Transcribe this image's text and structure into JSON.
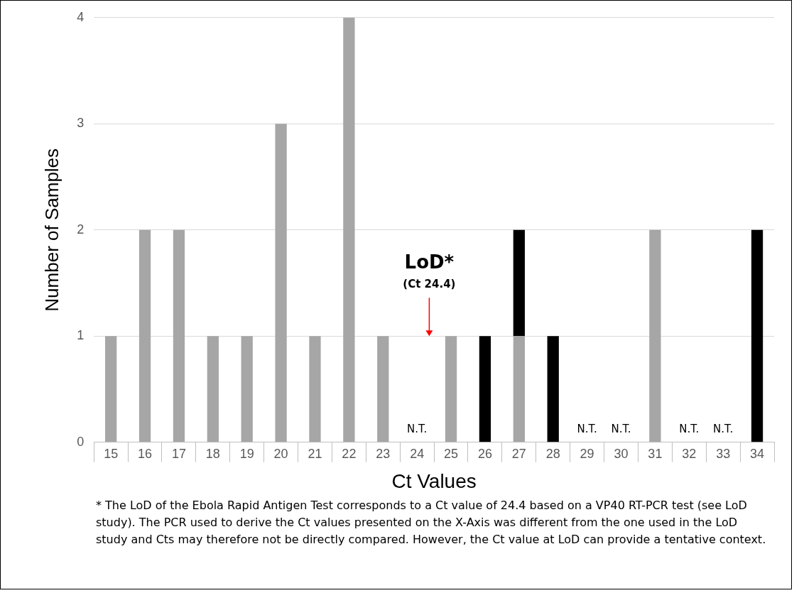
{
  "chart_data": {
    "type": "bar",
    "xlabel": "Ct Values",
    "ylabel": "Number of Samples",
    "categories": [
      "15",
      "16",
      "17",
      "18",
      "19",
      "20",
      "21",
      "22",
      "23",
      "24",
      "25",
      "26",
      "27",
      "28",
      "29",
      "30",
      "31",
      "32",
      "33",
      "34"
    ],
    "stacked": true,
    "series": [
      {
        "color": "#a6a6a6",
        "values": [
          1,
          2,
          2,
          1,
          1,
          3,
          1,
          4,
          1,
          0,
          1,
          0,
          1,
          0,
          0,
          0,
          2,
          0,
          0,
          0
        ]
      },
      {
        "color": "#000000",
        "values": [
          0,
          0,
          0,
          0,
          0,
          0,
          0,
          0,
          0,
          0,
          0,
          1,
          1,
          1,
          0,
          0,
          0,
          0,
          0,
          2
        ]
      }
    ],
    "ylim": [
      0,
      4
    ],
    "yticks": [
      0,
      1,
      2,
      3,
      4
    ],
    "grid": "y",
    "legend": false,
    "annotations": [
      {
        "text": "N.T.",
        "x": "24",
        "y": 0
      },
      {
        "text": "N.T.",
        "x": "29",
        "y": 0
      },
      {
        "text": "N.T.",
        "x": "30",
        "y": 0
      },
      {
        "text": "N.T.",
        "x": "32",
        "y": 0
      },
      {
        "text": "N.T.",
        "x": "33",
        "y": 0
      },
      "LoD*",
      "(Ct 24.4)",
      "* The LoD of the Ebola Rapid Antigen Test corresponds to a Ct value of 24.4 based on a VP40 RT-PCR test (see LoD study). The PCR used to derive the Ct values presented on the X-Axis was different from the one used in the LoD study and Cts may therefore not be directly compared. However, the Ct value at LoD can provide a tentative context."
    ]
  }
}
